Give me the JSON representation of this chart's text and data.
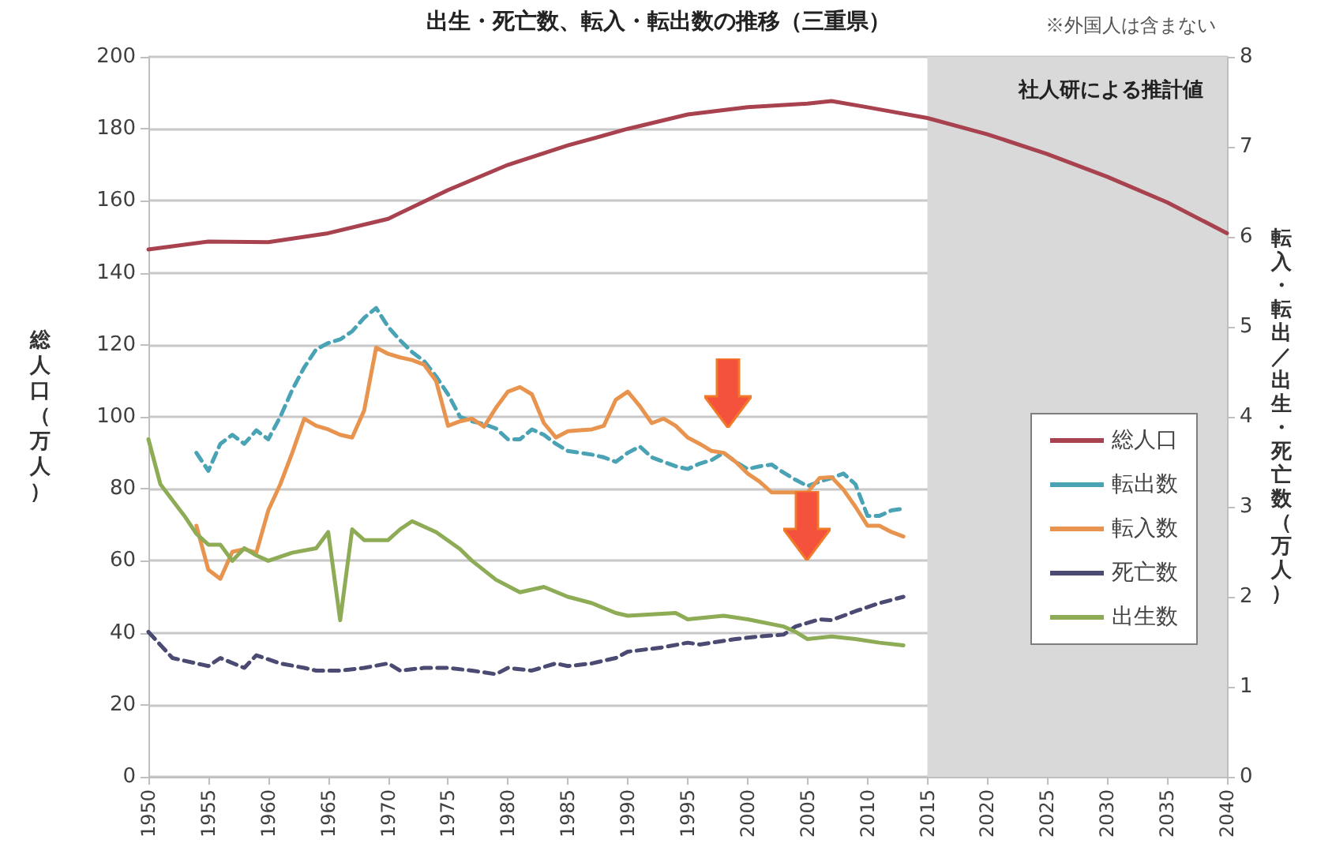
{
  "chart_data": {
    "type": "line",
    "title": "出生・死亡数、転入・転出数の推移（三重県）",
    "ylabel": "総人口（万人）",
    "y2label": "転入・転出／出生・死亡数（万人）",
    "annotations": [
      "※外国人は含まない"
    ],
    "xlim": [
      1950,
      2040
    ],
    "xticks": [
      1950,
      1955,
      1960,
      1965,
      1970,
      1975,
      1980,
      1985,
      1990,
      1995,
      2000,
      2005,
      2010,
      2015,
      2020,
      2025,
      2030,
      2035,
      2040
    ],
    "ylim": [
      0,
      200
    ],
    "yticks": [
      0,
      20,
      40,
      60,
      80,
      100,
      120,
      140,
      160,
      180,
      200
    ],
    "y2lim": [
      0,
      8
    ],
    "y2ticks": [
      0,
      1,
      2,
      3,
      4,
      5,
      6,
      7,
      8
    ],
    "grid": "y",
    "legend": "right",
    "marker": "none",
    "bands": [
      {
        "axis": "x",
        "from": 2015,
        "to": 2040,
        "label": "社人研による推計値",
        "color": "#d9d9d9"
      }
    ],
    "series": [
      {
        "name": "総人口",
        "color": "#a8424e",
        "x": [
          1950,
          1955,
          1960,
          1965,
          1970,
          1975,
          1980,
          1985,
          1990,
          1995,
          2000,
          2005,
          2007,
          2010,
          2015,
          2020,
          2025,
          2030,
          2035,
          2040
        ],
        "values": [
          146.5,
          148.7,
          148.5,
          151,
          155,
          163,
          170,
          175.4,
          180,
          184,
          186,
          187,
          187.7,
          186,
          183,
          178.5,
          173,
          166.7,
          159.6,
          151
        ]
      },
      {
        "name": "転出数",
        "color": "#4aa3b5",
        "axis": "y2",
        "line_style": "dashed",
        "x": [
          1954,
          1955,
          1956,
          1957,
          1958,
          1959,
          1960,
          1961,
          1962,
          1963,
          1964,
          1965,
          1966,
          1967,
          1968,
          1969,
          1970,
          1971,
          1972,
          1973,
          1974,
          1975,
          1976,
          1977,
          1978,
          1979,
          1980,
          1981,
          1982,
          1983,
          1984,
          1985,
          1986,
          1987,
          1988,
          1989,
          1990,
          1991,
          1992,
          1993,
          1994,
          1995,
          1996,
          1997,
          1998,
          1999,
          2000,
          2001,
          2002,
          2003,
          2004,
          2005,
          2006,
          2007,
          2008,
          2009,
          2010,
          2011,
          2012,
          2013
        ],
        "values": [
          3.6,
          3.4,
          3.7,
          3.8,
          3.7,
          3.85,
          3.75,
          4.0,
          4.3,
          4.55,
          4.75,
          4.82,
          4.86,
          4.95,
          5.1,
          5.21,
          5.0,
          4.85,
          4.72,
          4.62,
          4.45,
          4.25,
          4.0,
          3.95,
          3.92,
          3.87,
          3.75,
          3.75,
          3.86,
          3.8,
          3.7,
          3.62,
          3.6,
          3.58,
          3.55,
          3.5,
          3.6,
          3.67,
          3.55,
          3.5,
          3.45,
          3.42,
          3.48,
          3.52,
          3.6,
          3.5,
          3.42,
          3.45,
          3.47,
          3.38,
          3.3,
          3.23,
          3.28,
          3.32,
          3.37,
          3.25,
          2.9,
          2.9,
          2.96,
          2.98
        ]
      },
      {
        "name": "転入数",
        "color": "#e8944e",
        "axis": "y2",
        "x": [
          1954,
          1955,
          1956,
          1957,
          1958,
          1959,
          1960,
          1961,
          1962,
          1963,
          1964,
          1965,
          1966,
          1967,
          1968,
          1969,
          1970,
          1971,
          1972,
          1973,
          1974,
          1975,
          1976,
          1977,
          1978,
          1979,
          1980,
          1981,
          1982,
          1983,
          1984,
          1985,
          1986,
          1987,
          1988,
          1989,
          1990,
          1991,
          1992,
          1993,
          1994,
          1995,
          1996,
          1997,
          1998,
          1999,
          2000,
          2001,
          2002,
          2003,
          2004,
          2005,
          2006,
          2007,
          2008,
          2009,
          2010,
          2011,
          2012,
          2013
        ],
        "values": [
          2.79,
          2.3,
          2.2,
          2.5,
          2.53,
          2.49,
          2.96,
          3.25,
          3.6,
          3.98,
          3.9,
          3.86,
          3.8,
          3.77,
          4.07,
          4.77,
          4.7,
          4.66,
          4.63,
          4.58,
          4.4,
          3.9,
          3.95,
          3.98,
          3.89,
          4.1,
          4.28,
          4.33,
          4.25,
          3.93,
          3.77,
          3.84,
          3.85,
          3.86,
          3.9,
          4.19,
          4.28,
          4.12,
          3.93,
          3.98,
          3.9,
          3.77,
          3.7,
          3.62,
          3.6,
          3.5,
          3.37,
          3.28,
          3.16,
          3.16,
          3.16,
          3.16,
          3.32,
          3.33,
          3.19,
          3.0,
          2.79,
          2.79,
          2.72,
          2.67
        ]
      },
      {
        "name": "死亡数",
        "color": "#4b4a72",
        "axis": "y2",
        "line_style": "dashed",
        "x": [
          1950,
          1952,
          1955,
          1956,
          1958,
          1959,
          1961,
          1963,
          1964,
          1966,
          1968,
          1970,
          1971,
          1973,
          1975,
          1977,
          1979,
          1980,
          1982,
          1984,
          1985,
          1987,
          1989,
          1990,
          1993,
          1995,
          1996,
          1999,
          2001,
          2003,
          2004,
          2006,
          2007,
          2009,
          2011,
          2013
        ],
        "values": [
          1.61,
          1.32,
          1.23,
          1.32,
          1.21,
          1.35,
          1.26,
          1.21,
          1.18,
          1.18,
          1.21,
          1.26,
          1.18,
          1.21,
          1.21,
          1.18,
          1.14,
          1.21,
          1.18,
          1.26,
          1.23,
          1.26,
          1.32,
          1.39,
          1.44,
          1.49,
          1.47,
          1.53,
          1.56,
          1.58,
          1.67,
          1.75,
          1.74,
          1.84,
          1.93,
          2.0
        ]
      },
      {
        "name": "出生数",
        "color": "#8dac55",
        "axis": "y2",
        "x": [
          1950,
          1951,
          1953,
          1954,
          1955,
          1956,
          1957,
          1958,
          1959,
          1960,
          1962,
          1964,
          1965,
          1966,
          1967,
          1968,
          1970,
          1971,
          1972,
          1974,
          1976,
          1977,
          1979,
          1981,
          1983,
          1985,
          1987,
          1989,
          1990,
          1994,
          1995,
          1998,
          2000,
          2003,
          2004,
          2005,
          2007,
          2009,
          2011,
          2013
        ],
        "values": [
          3.75,
          3.25,
          2.9,
          2.7,
          2.58,
          2.58,
          2.4,
          2.54,
          2.46,
          2.4,
          2.49,
          2.54,
          2.72,
          1.74,
          2.75,
          2.63,
          2.63,
          2.75,
          2.84,
          2.72,
          2.53,
          2.4,
          2.19,
          2.05,
          2.11,
          2.0,
          1.93,
          1.82,
          1.79,
          1.82,
          1.75,
          1.79,
          1.75,
          1.67,
          1.61,
          1.53,
          1.56,
          1.53,
          1.49,
          1.46
        ]
      }
    ]
  }
}
